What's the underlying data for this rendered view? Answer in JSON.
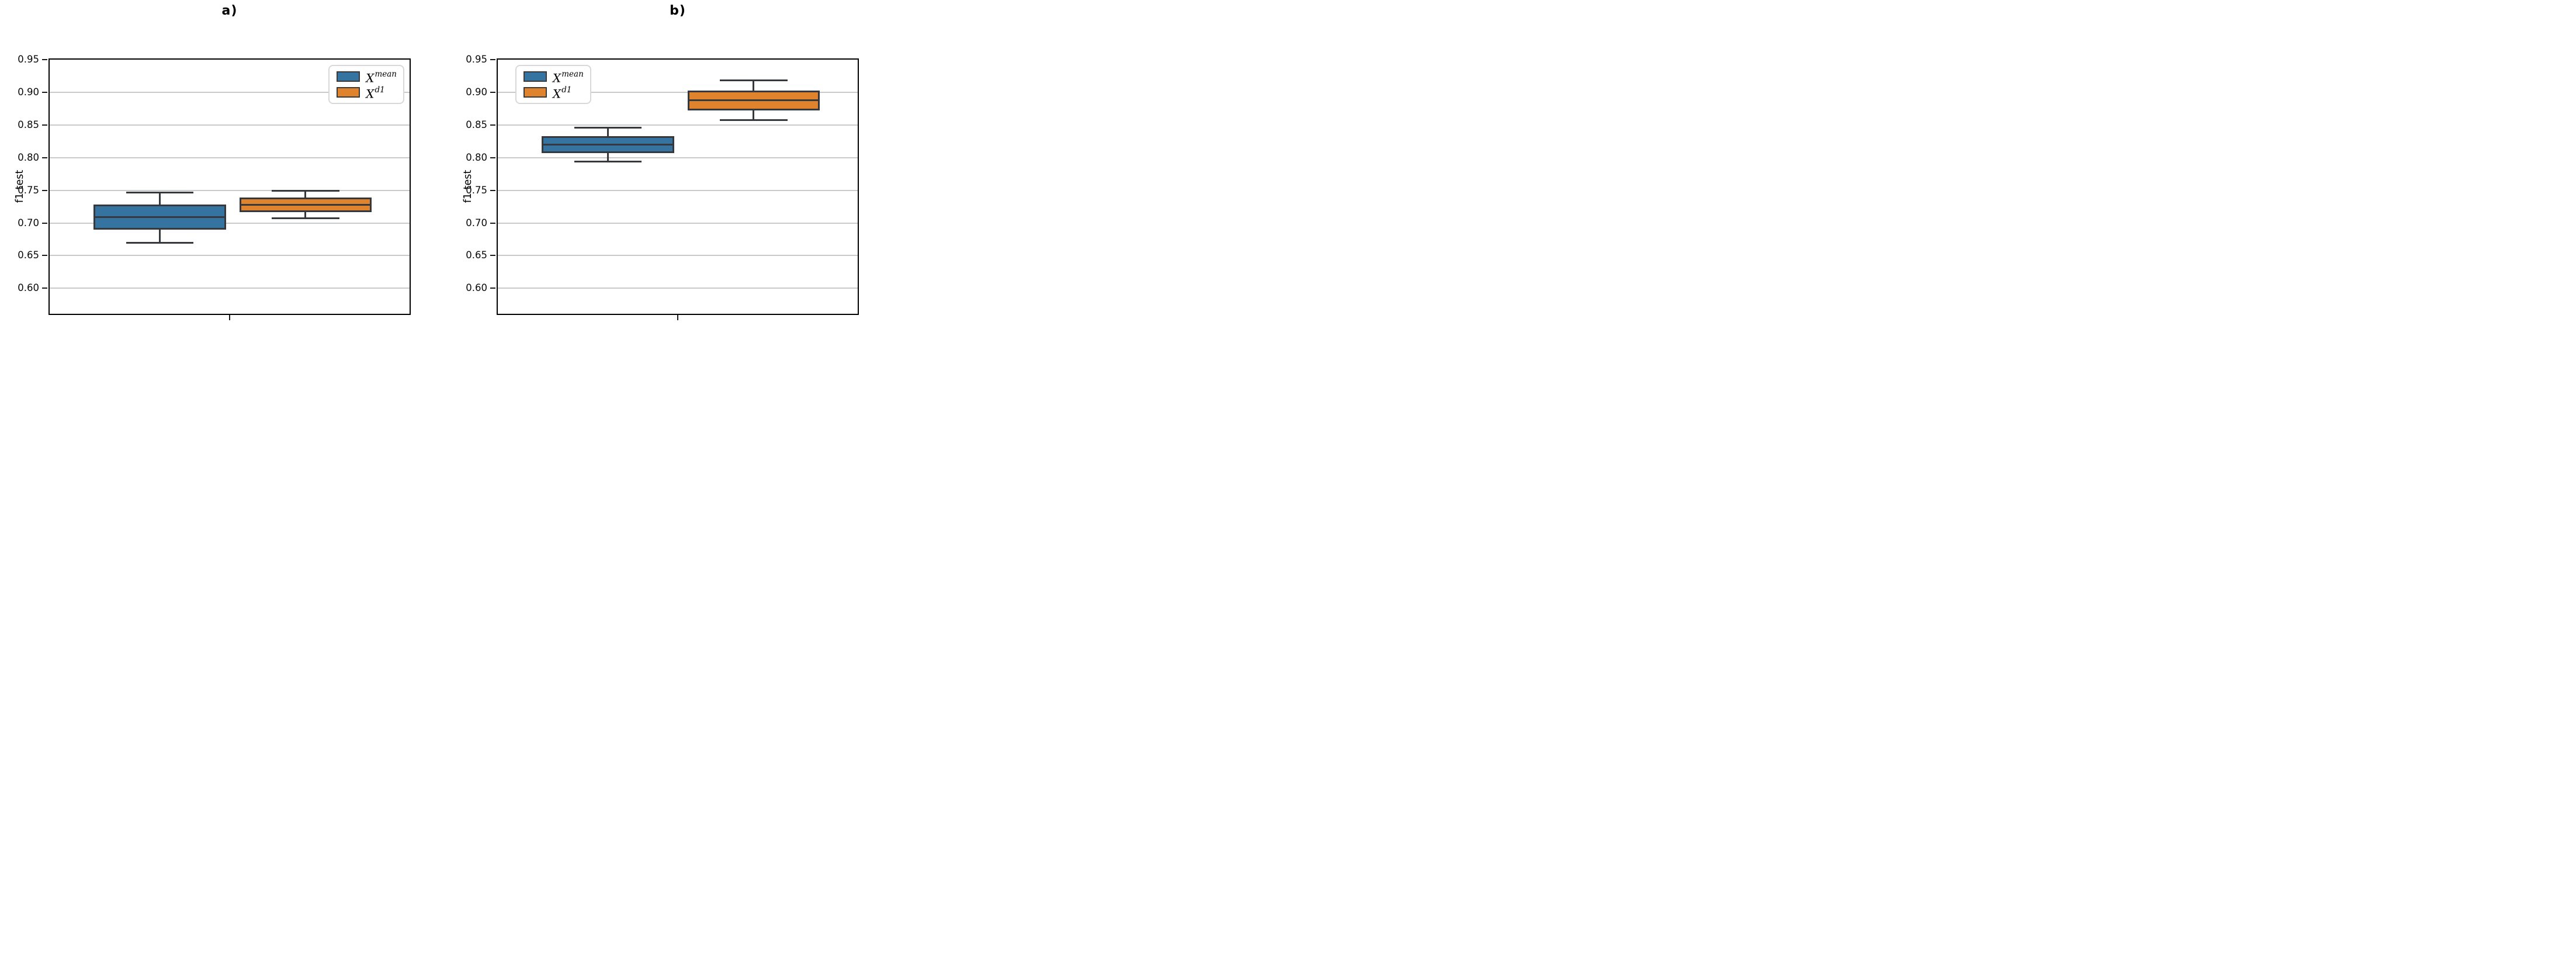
{
  "figure": {
    "background": "#ffffff",
    "text_color": "#000000",
    "grid_color": "#c9c9c9",
    "spine_color": "#000000",
    "box_edge_color": "#35383d",
    "series_colors": {
      "X^mean": "#3574A0",
      "X^d1": "#E0832D"
    }
  },
  "chart_data": [
    {
      "type": "boxplot",
      "panel": "a)",
      "ylabel": "f1 test",
      "ylim": [
        0.561,
        0.95
      ],
      "yticks": [
        0.95,
        0.9,
        0.85,
        0.8,
        0.75,
        0.7,
        0.65,
        0.6
      ],
      "grid": true,
      "legend_position": "upper right",
      "series": [
        {
          "name": "X^mean",
          "label_base": "X",
          "label_sup": "mean",
          "color": "#3574A0",
          "whislo": 0.67,
          "q1": 0.69,
          "med": 0.709,
          "q3": 0.728,
          "whishi": 0.747
        },
        {
          "name": "X^d1",
          "label_base": "X",
          "label_sup": "d1",
          "color": "#E0832D",
          "whislo": 0.707,
          "q1": 0.717,
          "med": 0.728,
          "q3": 0.739,
          "whishi": 0.749
        }
      ]
    },
    {
      "type": "boxplot",
      "panel": "b)",
      "ylabel": "f1 test",
      "ylim": [
        0.561,
        0.95
      ],
      "yticks": [
        0.95,
        0.9,
        0.85,
        0.8,
        0.75,
        0.7,
        0.65,
        0.6
      ],
      "grid": true,
      "legend_position": "upper left",
      "series": [
        {
          "name": "X^mean",
          "label_base": "X",
          "label_sup": "mean",
          "color": "#3574A0",
          "whislo": 0.794,
          "q1": 0.807,
          "med": 0.82,
          "q3": 0.833,
          "whishi": 0.846
        },
        {
          "name": "X^d1",
          "label_base": "X",
          "label_sup": "d1",
          "color": "#E0832D",
          "whislo": 0.857,
          "q1": 0.872,
          "med": 0.888,
          "q3": 0.903,
          "whishi": 0.918
        }
      ]
    }
  ]
}
